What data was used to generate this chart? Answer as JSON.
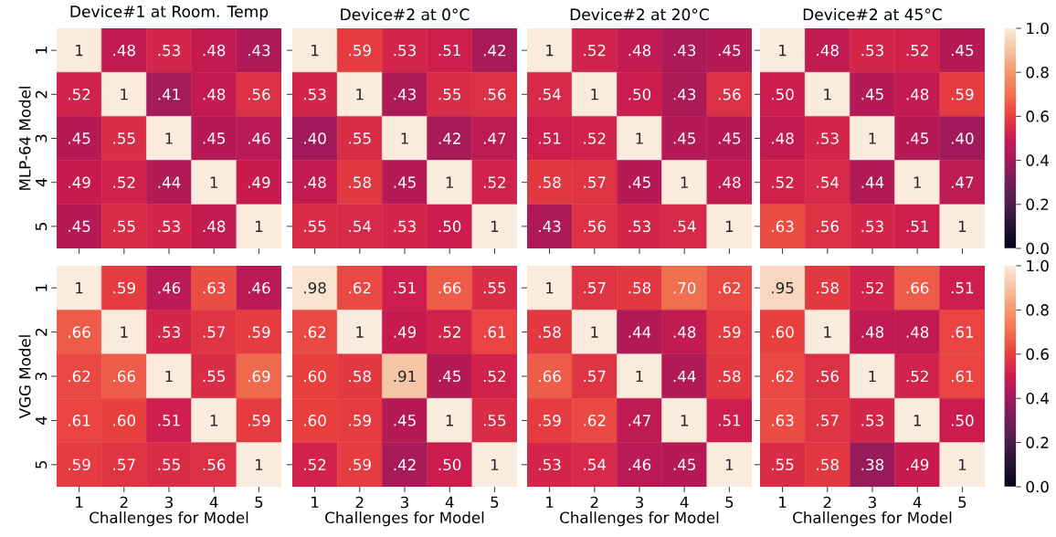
{
  "chart_data": [
    {
      "type": "heatmap",
      "title": "Device#1 at Room. Temp",
      "ylabel": "MLP-64 Model",
      "tick_labels": "y",
      "categories": [
        "1",
        "2",
        "3",
        "4",
        "5"
      ],
      "y_categories": [
        "1",
        "2",
        "3",
        "4",
        "5"
      ],
      "cells": [
        [
          1,
          0.48,
          0.53,
          0.48,
          0.43
        ],
        [
          0.52,
          1,
          0.41,
          0.48,
          0.56
        ],
        [
          0.45,
          0.55,
          1,
          0.45,
          0.46
        ],
        [
          0.49,
          0.52,
          0.44,
          1,
          0.49
        ],
        [
          0.45,
          0.55,
          0.53,
          0.48,
          1
        ]
      ],
      "cell_labels": [
        [
          "1",
          ".48",
          ".53",
          ".48",
          ".43"
        ],
        [
          ".52",
          "1",
          ".41",
          ".48",
          ".56"
        ],
        [
          ".45",
          ".55",
          "1",
          ".45",
          ".46"
        ],
        [
          ".49",
          ".52",
          ".44",
          "1",
          ".49"
        ],
        [
          ".45",
          ".55",
          ".53",
          ".48",
          "1"
        ]
      ]
    },
    {
      "type": "heatmap",
      "title": "Device#2 at 0°C",
      "tick_labels": false,
      "categories": [
        "1",
        "2",
        "3",
        "4",
        "5"
      ],
      "y_categories": [
        "1",
        "2",
        "3",
        "4",
        "5"
      ],
      "cells": [
        [
          1,
          0.59,
          0.53,
          0.51,
          0.42
        ],
        [
          0.53,
          1,
          0.43,
          0.55,
          0.56
        ],
        [
          0.4,
          0.55,
          1,
          0.42,
          0.47
        ],
        [
          0.48,
          0.58,
          0.45,
          1,
          0.52
        ],
        [
          0.55,
          0.54,
          0.53,
          0.5,
          1
        ]
      ],
      "cell_labels": [
        [
          "1",
          ".59",
          ".53",
          ".51",
          ".42"
        ],
        [
          ".53",
          "1",
          ".43",
          ".55",
          ".56"
        ],
        [
          ".40",
          ".55",
          "1",
          ".42",
          ".47"
        ],
        [
          ".48",
          ".58",
          ".45",
          "1",
          ".52"
        ],
        [
          ".55",
          ".54",
          ".53",
          ".50",
          "1"
        ]
      ]
    },
    {
      "type": "heatmap",
      "title": "Device#2 at 20°C",
      "tick_labels": false,
      "categories": [
        "1",
        "2",
        "3",
        "4",
        "5"
      ],
      "y_categories": [
        "1",
        "2",
        "3",
        "4",
        "5"
      ],
      "cells": [
        [
          1,
          0.52,
          0.48,
          0.43,
          0.45
        ],
        [
          0.54,
          1,
          0.5,
          0.43,
          0.56
        ],
        [
          0.51,
          0.52,
          1,
          0.45,
          0.45
        ],
        [
          0.58,
          0.57,
          0.45,
          1,
          0.48
        ],
        [
          0.43,
          0.56,
          0.53,
          0.54,
          1
        ]
      ],
      "cell_labels": [
        [
          "1",
          ".52",
          ".48",
          ".43",
          ".45"
        ],
        [
          ".54",
          "1",
          ".50",
          ".43",
          ".56"
        ],
        [
          ".51",
          ".52",
          "1",
          ".45",
          ".45"
        ],
        [
          ".58",
          ".57",
          ".45",
          "1",
          ".48"
        ],
        [
          ".43",
          ".56",
          ".53",
          ".54",
          "1"
        ]
      ]
    },
    {
      "type": "heatmap",
      "title": "Device#2 at 45°C",
      "tick_labels": false,
      "categories": [
        "1",
        "2",
        "3",
        "4",
        "5"
      ],
      "y_categories": [
        "1",
        "2",
        "3",
        "4",
        "5"
      ],
      "clim": [
        0,
        1
      ],
      "cticks": [
        {
          "value": 0,
          "label": "0.0"
        },
        {
          "value": 0.2,
          "label": "0.2"
        },
        {
          "value": 0.4,
          "label": "0.4"
        },
        {
          "value": 0.6,
          "label": "0.6"
        },
        {
          "value": 0.8,
          "label": "0.8"
        },
        {
          "value": 1,
          "label": "1.0"
        }
      ],
      "cells": [
        [
          1,
          0.48,
          0.53,
          0.52,
          0.45
        ],
        [
          0.5,
          1,
          0.45,
          0.48,
          0.59
        ],
        [
          0.48,
          0.53,
          1,
          0.45,
          0.4
        ],
        [
          0.52,
          0.54,
          0.44,
          1,
          0.47
        ],
        [
          0.63,
          0.56,
          0.53,
          0.51,
          1
        ]
      ],
      "cell_labels": [
        [
          "1",
          ".48",
          ".53",
          ".52",
          ".45"
        ],
        [
          ".50",
          "1",
          ".45",
          ".48",
          ".59"
        ],
        [
          ".48",
          ".53",
          "1",
          ".45",
          ".40"
        ],
        [
          ".52",
          ".54",
          ".44",
          "1",
          ".47"
        ],
        [
          ".63",
          ".56",
          ".53",
          ".51",
          "1"
        ]
      ]
    },
    {
      "type": "heatmap",
      "xlabel": "Challenges for Model",
      "ylabel": "VGG Model",
      "categories": [
        "1",
        "2",
        "3",
        "4",
        "5"
      ],
      "y_categories": [
        "1",
        "2",
        "3",
        "4",
        "5"
      ],
      "cells": [
        [
          1,
          0.59,
          0.46,
          0.63,
          0.46
        ],
        [
          0.66,
          1,
          0.53,
          0.57,
          0.59
        ],
        [
          0.62,
          0.66,
          1,
          0.55,
          0.69
        ],
        [
          0.61,
          0.6,
          0.51,
          1,
          0.59
        ],
        [
          0.59,
          0.57,
          0.55,
          0.56,
          1
        ]
      ],
      "cell_labels": [
        [
          "1",
          ".59",
          ".46",
          ".63",
          ".46"
        ],
        [
          ".66",
          "1",
          ".53",
          ".57",
          ".59"
        ],
        [
          ".62",
          ".66",
          "1",
          ".55",
          ".69"
        ],
        [
          ".61",
          ".60",
          ".51",
          "1",
          ".59"
        ],
        [
          ".59",
          ".57",
          ".55",
          ".56",
          "1"
        ]
      ]
    },
    {
      "type": "heatmap",
      "xlabel": "Challenges for Model",
      "tick_labels": "x",
      "categories": [
        "1",
        "2",
        "3",
        "4",
        "5"
      ],
      "y_categories": [
        "1",
        "2",
        "3",
        "4",
        "5"
      ],
      "cells": [
        [
          0.98,
          0.62,
          0.51,
          0.66,
          0.55
        ],
        [
          0.62,
          1,
          0.49,
          0.52,
          0.61
        ],
        [
          0.6,
          0.58,
          0.91,
          0.45,
          0.52
        ],
        [
          0.6,
          0.59,
          0.45,
          1,
          0.55
        ],
        [
          0.52,
          0.59,
          0.42,
          0.5,
          1
        ]
      ],
      "cell_labels": [
        [
          ".98",
          ".62",
          ".51",
          ".66",
          ".55"
        ],
        [
          ".62",
          "1",
          ".49",
          ".52",
          ".61"
        ],
        [
          ".60",
          ".58",
          ".91",
          ".45",
          ".52"
        ],
        [
          ".60",
          ".59",
          ".45",
          "1",
          ".55"
        ],
        [
          ".52",
          ".59",
          ".42",
          ".50",
          "1"
        ]
      ]
    },
    {
      "type": "heatmap",
      "xlabel": "Challenges for Model",
      "tick_labels": "x",
      "categories": [
        "1",
        "2",
        "3",
        "4",
        "5"
      ],
      "y_categories": [
        "1",
        "2",
        "3",
        "4",
        "5"
      ],
      "cells": [
        [
          1,
          0.57,
          0.58,
          0.7,
          0.62
        ],
        [
          0.58,
          1,
          0.44,
          0.48,
          0.59
        ],
        [
          0.66,
          0.57,
          1,
          0.44,
          0.58
        ],
        [
          0.59,
          0.62,
          0.47,
          1,
          0.51
        ],
        [
          0.53,
          0.54,
          0.46,
          0.45,
          1
        ]
      ],
      "cell_labels": [
        [
          "1",
          ".57",
          ".58",
          ".70",
          ".62"
        ],
        [
          ".58",
          "1",
          ".44",
          ".48",
          ".59"
        ],
        [
          ".66",
          ".57",
          "1",
          ".44",
          ".58"
        ],
        [
          ".59",
          ".62",
          ".47",
          "1",
          ".51"
        ],
        [
          ".53",
          ".54",
          ".46",
          ".45",
          "1"
        ]
      ]
    },
    {
      "type": "heatmap",
      "xlabel": "Challenges for Model",
      "tick_labels": "x",
      "categories": [
        "1",
        "2",
        "3",
        "4",
        "5"
      ],
      "y_categories": [
        "1",
        "2",
        "3",
        "4",
        "5"
      ],
      "clim": [
        0,
        1
      ],
      "cticks": [
        {
          "value": 0,
          "label": "0.0"
        },
        {
          "value": 0.2,
          "label": "0.2"
        },
        {
          "value": 0.4,
          "label": "0.4"
        },
        {
          "value": 0.6,
          "label": "0.6"
        },
        {
          "value": 0.8,
          "label": "0.8"
        },
        {
          "value": 1,
          "label": "1.0"
        }
      ],
      "cells": [
        [
          0.95,
          0.58,
          0.52,
          0.66,
          0.51
        ],
        [
          0.6,
          1,
          0.48,
          0.48,
          0.61
        ],
        [
          0.62,
          0.56,
          1,
          0.52,
          0.61
        ],
        [
          0.63,
          0.57,
          0.53,
          1,
          0.5
        ],
        [
          0.55,
          0.58,
          0.38,
          0.49,
          1
        ]
      ],
      "cell_labels": [
        [
          ".95",
          ".58",
          ".52",
          ".66",
          ".51"
        ],
        [
          ".60",
          "1",
          ".48",
          ".48",
          ".61"
        ],
        [
          ".62",
          ".56",
          "1",
          ".52",
          ".61"
        ],
        [
          ".63",
          ".57",
          ".53",
          "1",
          ".50"
        ],
        [
          ".55",
          ".58",
          ".38",
          ".49",
          "1"
        ]
      ]
    }
  ]
}
